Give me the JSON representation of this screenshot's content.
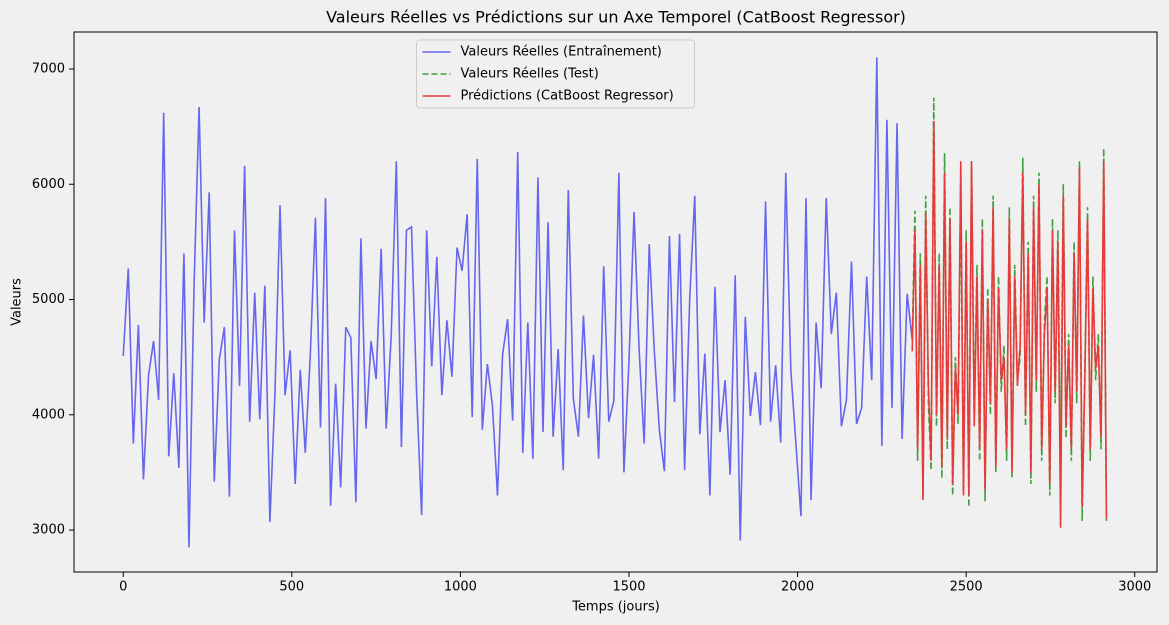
{
  "chart_data": {
    "type": "line",
    "title": "Valeurs Réelles vs Prédictions sur un Axe Temporel (CatBoost Regressor)",
    "x_label": "Temps (jours)",
    "y_label": "Valeurs",
    "xlim": [
      -146,
      3066
    ],
    "ylim": [
      2636,
      7321
    ],
    "xticks": [
      0,
      500,
      1000,
      1500,
      2000,
      2500,
      3000
    ],
    "yticks": [
      3000,
      4000,
      5000,
      6000,
      7000
    ],
    "legend": "upper center",
    "series": [
      {
        "name": "Valeurs Réelles (Entraînement)",
        "color": "#6666ee",
        "dash": "solid",
        "x": [
          0,
          15,
          30,
          45,
          60,
          75,
          90,
          105,
          120,
          135,
          150,
          165,
          180,
          195,
          210,
          225,
          240,
          255,
          270,
          285,
          300,
          315,
          330,
          345,
          360,
          375,
          390,
          405,
          420,
          435,
          450,
          465,
          480,
          495,
          510,
          525,
          540,
          555,
          570,
          585,
          600,
          615,
          630,
          645,
          660,
          675,
          690,
          705,
          720,
          735,
          750,
          765,
          780,
          795,
          810,
          825,
          840,
          855,
          870,
          885,
          900,
          915,
          930,
          945,
          960,
          975,
          990,
          1005,
          1020,
          1035,
          1050,
          1065,
          1080,
          1095,
          1110,
          1125,
          1140,
          1155,
          1170,
          1185,
          1200,
          1215,
          1230,
          1245,
          1260,
          1275,
          1290,
          1305,
          1320,
          1335,
          1350,
          1365,
          1380,
          1395,
          1410,
          1425,
          1440,
          1455,
          1470,
          1485,
          1500,
          1515,
          1530,
          1545,
          1560,
          1575,
          1590,
          1605,
          1620,
          1635,
          1650,
          1665,
          1680,
          1695,
          1710,
          1725,
          1740,
          1755,
          1770,
          1785,
          1800,
          1815,
          1830,
          1845,
          1860,
          1875,
          1890,
          1905,
          1920,
          1935,
          1950,
          1965,
          1980,
          1995,
          2010,
          2025,
          2040,
          2055,
          2070,
          2085,
          2100,
          2115,
          2130,
          2145,
          2160,
          2175,
          2190,
          2205,
          2220,
          2235,
          2250,
          2265,
          2280,
          2295,
          2310,
          2325,
          2340
        ],
        "values": [
          4510,
          5270,
          3750,
          4780,
          3440,
          4340,
          4640,
          4130,
          6620,
          3640,
          4360,
          3540,
          5400,
          2850,
          5110,
          6670,
          4800,
          5930,
          3420,
          4480,
          4760,
          3290,
          5600,
          4250,
          6160,
          3940,
          5060,
          3960,
          5120,
          3070,
          4190,
          5820,
          4170,
          4560,
          3400,
          4390,
          3670,
          4530,
          5710,
          3890,
          5880,
          3210,
          4270,
          3370,
          4760,
          4670,
          3240,
          5530,
          3880,
          4640,
          4310,
          5440,
          3880,
          4700,
          6200,
          3720,
          5600,
          5630,
          4200,
          3130,
          5600,
          4420,
          5370,
          4170,
          4820,
          4330,
          5450,
          5250,
          5740,
          3980,
          6220,
          3870,
          4440,
          4080,
          3300,
          4520,
          4830,
          3950,
          6280,
          3670,
          4800,
          3620,
          6060,
          3850,
          5670,
          3810,
          4570,
          3520,
          5950,
          4140,
          3810,
          4860,
          3970,
          4520,
          3620,
          5290,
          3940,
          4120,
          6100,
          3500,
          4470,
          5760,
          4570,
          3750,
          5480,
          4560,
          3870,
          3510,
          5550,
          4110,
          5570,
          3520,
          5000,
          5900,
          3830,
          4530,
          3300,
          5110,
          3850,
          4300,
          3480,
          5210,
          2910,
          4850,
          3990,
          4370,
          3910,
          5850,
          3940,
          4430,
          3760,
          6100,
          4390,
          3750,
          3120,
          5880,
          3260,
          4800,
          4230,
          5880,
          4700,
          5060,
          3900,
          4130,
          5330,
          3920,
          4060,
          5200,
          4300,
          7100,
          3730,
          6560,
          4060,
          6530,
          3790,
          5050,
          4650
        ]
      },
      {
        "name": "Valeurs Réelles (Test)",
        "color": "#3fa03f",
        "dash": "dashed",
        "x": [
          2340,
          2348,
          2356,
          2364,
          2372,
          2380,
          2388,
          2396,
          2404,
          2412,
          2420,
          2428,
          2436,
          2444,
          2452,
          2460,
          2468,
          2476,
          2484,
          2492,
          2500,
          2508,
          2516,
          2524,
          2532,
          2540,
          2548,
          2556,
          2564,
          2572,
          2580,
          2588,
          2596,
          2604,
          2612,
          2620,
          2628,
          2636,
          2644,
          2652,
          2660,
          2668,
          2676,
          2684,
          2692,
          2700,
          2708,
          2716,
          2724,
          2732,
          2740,
          2748,
          2756,
          2764,
          2772,
          2780,
          2788,
          2796,
          2804,
          2812,
          2820,
          2828,
          2836,
          2844,
          2852,
          2860,
          2868,
          2876,
          2884,
          2892,
          2900,
          2908,
          2916
        ],
        "values": [
          4650,
          5770,
          3600,
          5400,
          3300,
          5900,
          4100,
          3520,
          6750,
          3900,
          5400,
          3450,
          6270,
          3700,
          5800,
          3300,
          4500,
          3920,
          6000,
          3350,
          5600,
          3200,
          6200,
          4000,
          5300,
          3600,
          5700,
          3250,
          5100,
          4000,
          5900,
          3500,
          5200,
          4200,
          4600,
          3600,
          5800,
          3450,
          5300,
          4300,
          4500,
          6230,
          3900,
          5500,
          3400,
          5900,
          4200,
          6100,
          3600,
          4800,
          5200,
          3300,
          5700,
          4100,
          5600,
          3500,
          6000,
          3800,
          4700,
          3600,
          5500,
          4100,
          6200,
          3080,
          4400,
          5800,
          3600,
          5200,
          4300,
          4700,
          3700,
          6310,
          3080
        ]
      },
      {
        "name": "Prédictions (CatBoost Regressor)",
        "color": "#e83a3a",
        "dash": "solid",
        "x": [
          2340,
          2348,
          2356,
          2364,
          2372,
          2380,
          2388,
          2396,
          2404,
          2412,
          2420,
          2428,
          2436,
          2444,
          2452,
          2460,
          2468,
          2476,
          2484,
          2492,
          2500,
          2508,
          2516,
          2524,
          2532,
          2540,
          2548,
          2556,
          2564,
          2572,
          2580,
          2588,
          2596,
          2604,
          2612,
          2620,
          2628,
          2636,
          2644,
          2652,
          2660,
          2668,
          2676,
          2684,
          2692,
          2700,
          2708,
          2716,
          2724,
          2732,
          2740,
          2748,
          2756,
          2764,
          2772,
          2780,
          2788,
          2796,
          2804,
          2812,
          2820,
          2828,
          2836,
          2844,
          2852,
          2860,
          2868,
          2876,
          2884,
          2892,
          2900,
          2908,
          2916
        ],
        "values": [
          4550,
          5600,
          3700,
          5300,
          3260,
          5750,
          4250,
          3600,
          6550,
          4000,
          5300,
          3550,
          6100,
          3800,
          5700,
          3400,
          4400,
          4000,
          6200,
          3300,
          5500,
          3300,
          6200,
          3900,
          5200,
          3700,
          5600,
          3350,
          5000,
          4100,
          5800,
          3550,
          5100,
          4300,
          4500,
          3700,
          5700,
          3500,
          5200,
          4250,
          4600,
          6100,
          4000,
          5400,
          3500,
          5800,
          4300,
          6000,
          3700,
          4700,
          5100,
          3400,
          5600,
          4200,
          5500,
          3020,
          5900,
          3900,
          4600,
          3700,
          5400,
          4200,
          6150,
          3200,
          4300,
          5700,
          3700,
          5100,
          4400,
          4600,
          3800,
          6200,
          3100
        ]
      }
    ]
  }
}
